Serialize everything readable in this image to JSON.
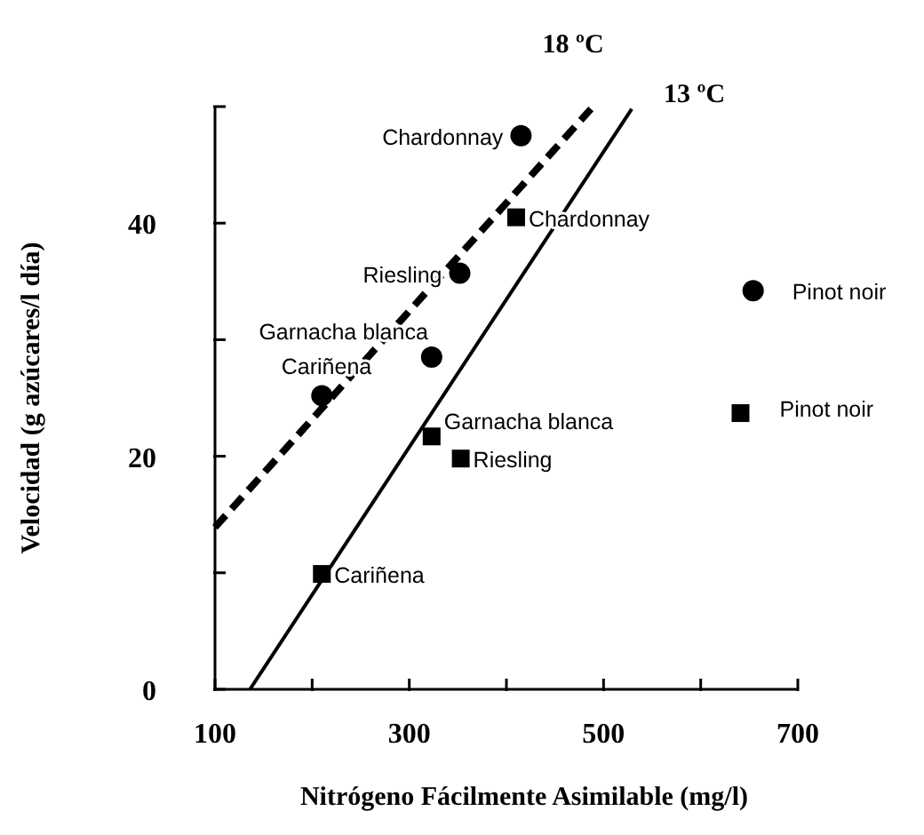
{
  "chart_data": {
    "type": "scatter",
    "xlabel": "Nitrógeno Fácilmente Asimilable (mg/l)",
    "ylabel": "Velocidad (g azúcares/l día)",
    "xlim": [
      100,
      700
    ],
    "xticks": [
      100,
      {
        "value": 200,
        "label": null
      },
      300,
      {
        "value": 400,
        "label": null
      },
      500,
      {
        "value": 600,
        "label": null
      },
      700
    ],
    "ylim": [
      0,
      50
    ],
    "yticks": [
      0,
      {
        "value": 10,
        "label": null
      },
      20,
      {
        "value": 30,
        "label": null
      },
      40,
      {
        "value": 50,
        "label": null
      }
    ],
    "grid": false,
    "series": [
      {
        "marker": "circle",
        "color": "#000000",
        "x": [
          415,
          352,
          323,
          210,
          654
        ],
        "values": [
          47.5,
          35.7,
          28.5,
          25.2,
          34.2
        ]
      },
      {
        "marker": "square",
        "color": "#000000",
        "x": [
          410,
          323,
          353,
          210,
          641
        ],
        "values": [
          40.5,
          21.7,
          19.8,
          9.9,
          23.7
        ]
      },
      {
        "type": "line",
        "name": "18 ºC",
        "line_style": "dashed",
        "color": "#000000",
        "x": [
          100,
          487
        ],
        "values": [
          13.9,
          49.8
        ]
      },
      {
        "type": "line",
        "name": "13 ºC",
        "line_style": "solid",
        "color": "#000000",
        "x": [
          136,
          529
        ],
        "values": [
          0,
          49.8
        ]
      }
    ],
    "annotations": [
      {
        "text": "Chardonnay",
        "x": 415,
        "y": 47.5
      },
      {
        "text": "Riesling",
        "x": 352,
        "y": 35.7
      },
      {
        "text": "Garnacha blanca",
        "x": 323,
        "y": 28.5
      },
      {
        "text": "Cariñena",
        "x": 210,
        "y": 25.2
      },
      {
        "text": "Pinot noir",
        "x": 654,
        "y": 34.2
      },
      {
        "text": "Chardonnay",
        "x": 410,
        "y": 40.5
      },
      {
        "text": "Garnacha blanca",
        "x": 323,
        "y": 21.7
      },
      {
        "text": "Riesling",
        "x": 353,
        "y": 19.8
      },
      {
        "text": "Cariñena",
        "x": 210,
        "y": 9.9
      },
      {
        "text": "Pinot noir",
        "x": 641,
        "y": 23.7
      }
    ]
  }
}
